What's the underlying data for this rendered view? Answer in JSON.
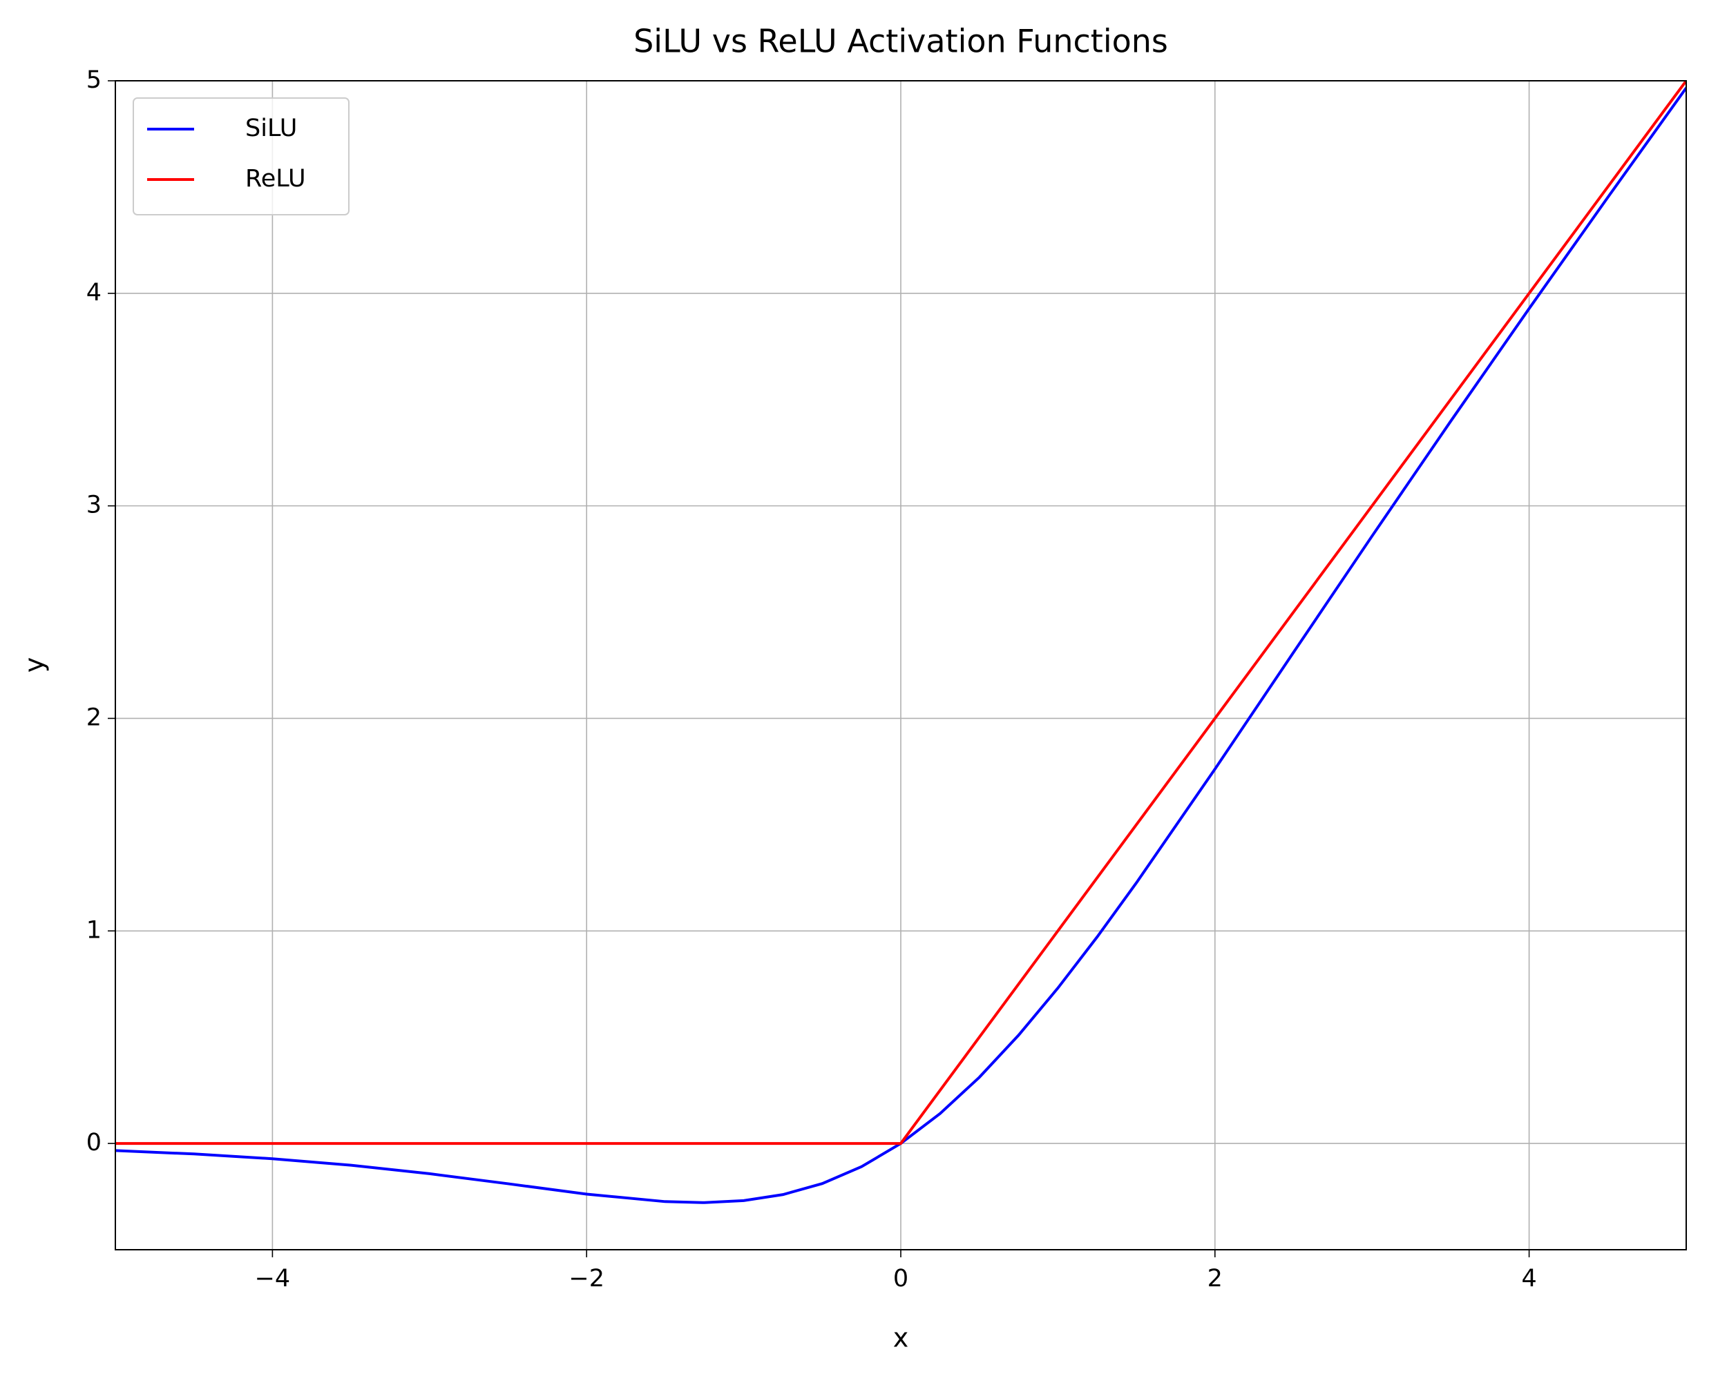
{
  "chart_data": {
    "type": "line",
    "title": "SiLU vs ReLU Activation Functions",
    "x_label": "x",
    "y_label": "y",
    "series": [
      {
        "name": "SiLU",
        "color": "#0000ff",
        "x": [
          -5,
          -4.5,
          -4,
          -3.5,
          -3,
          -2.5,
          -2,
          -1.5,
          -1.25,
          -1,
          -0.75,
          -0.5,
          -0.25,
          0,
          0.25,
          0.5,
          0.75,
          1,
          1.25,
          1.5,
          2,
          2.5,
          3,
          3.5,
          4,
          4.5,
          5
        ],
        "values": [
          -0.0335,
          -0.0494,
          -0.0719,
          -0.1026,
          -0.1423,
          -0.1896,
          -0.2384,
          -0.2736,
          -0.2784,
          -0.2689,
          -0.2406,
          -0.1888,
          -0.1094,
          0,
          0.1406,
          0.3112,
          0.5094,
          0.7311,
          0.9716,
          1.2264,
          1.7616,
          2.3104,
          2.8577,
          3.3974,
          3.9281,
          4.4506,
          4.9665
        ]
      },
      {
        "name": "ReLU",
        "color": "#ff0000",
        "x": [
          -5,
          0,
          5
        ],
        "values": [
          0,
          0,
          5
        ]
      }
    ],
    "xlim": [
      -5,
      5
    ],
    "ylim": [
      -0.5,
      5
    ],
    "xticks": [
      {
        "value": -4,
        "label": "−4"
      },
      {
        "value": -2,
        "label": "−2"
      },
      0,
      2,
      4
    ],
    "yticks": [
      0,
      1,
      2,
      3,
      4,
      5
    ],
    "grid": true,
    "legend": "upper left"
  }
}
